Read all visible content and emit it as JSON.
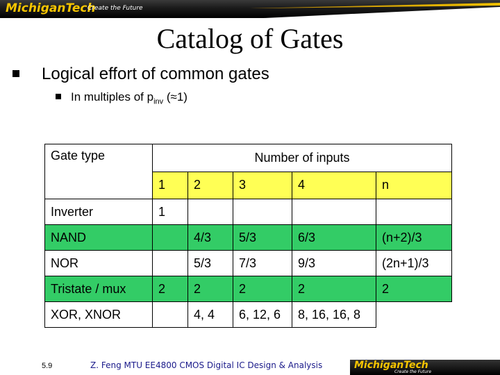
{
  "header": {
    "logo": "MichiganTech",
    "tagline": "Create the Future"
  },
  "slide": {
    "title": "Catalog of Gates",
    "bullet1": "Logical effort of common gates",
    "bullet2_pre": "In multiples of p",
    "bullet2_sub": "inv",
    "bullet2_post": " (≈1)"
  },
  "table": {
    "header_gate": "Gate type",
    "header_inputs": "Number of inputs",
    "cols": [
      "1",
      "2",
      "3",
      "4",
      "n"
    ],
    "rows": [
      {
        "type": "Inverter",
        "cells": [
          "1",
          "",
          "",
          "",
          ""
        ]
      },
      {
        "type": "NAND",
        "cells": [
          "",
          "4/3",
          "5/3",
          "6/3",
          "(n+2)/3"
        ]
      },
      {
        "type": "NOR",
        "cells": [
          "",
          "5/3",
          "7/3",
          "9/3",
          "(2n+1)/3"
        ]
      },
      {
        "type": "Tristate / mux",
        "cells": [
          "2",
          "2",
          "2",
          "2",
          "2"
        ]
      },
      {
        "type": "XOR, XNOR",
        "cells": [
          "",
          "4, 4",
          "6, 12, 6",
          "8, 16, 16, 8",
          ""
        ]
      }
    ]
  },
  "footer": {
    "slide_number": "5.9",
    "text": "Z. Feng MTU EE4800 CMOS Digital IC Design & Analysis",
    "logo": "MichiganTech",
    "tagline": "Create the Future"
  }
}
